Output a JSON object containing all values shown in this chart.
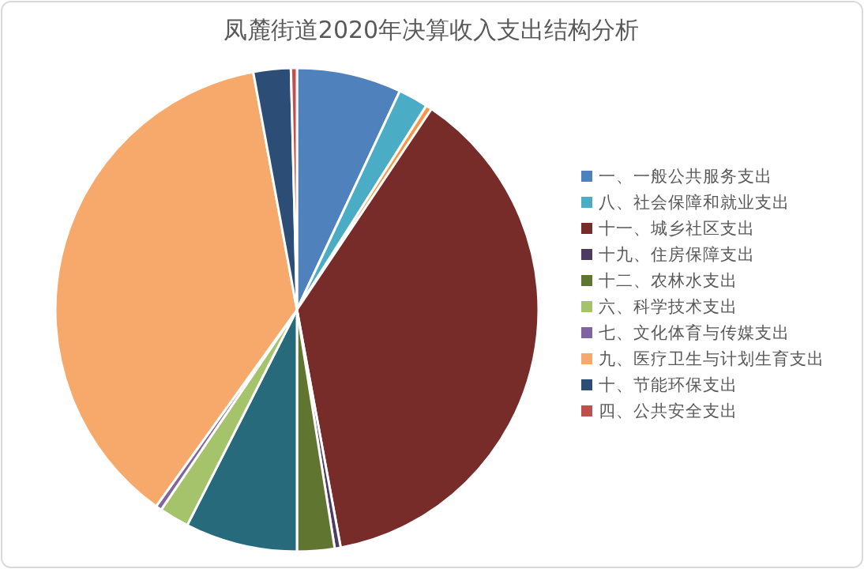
{
  "chart_data": {
    "type": "pie",
    "title": "凤麓街道2020年决算收入支出结构分析",
    "categories": [
      "一、一般公共服务支出",
      "八、社会保障和就业支出",
      null,
      "十一、城乡社区支出",
      "十九、住房保障支出",
      "十二、农林水支出",
      null,
      "六、科学技术支出",
      "七、文化体育与传媒支出",
      "九、医疗卫生与计划生育支出",
      "十、节能环保支出",
      "四、公共安全支出"
    ],
    "values": [
      7,
      2,
      0.4,
      37.7,
      0.4,
      2.5,
      7.5,
      2,
      0.4,
      37.2,
      2.5,
      0.4
    ],
    "colors": [
      "#4f81bd",
      "#4bacc6",
      "#f79646",
      "#772c2a",
      "#4d3b62",
      "#5f7530",
      "#276a7c",
      "#a5c36b",
      "#8064a2",
      "#f6a96a",
      "#2c4d75",
      "#c0504d"
    ],
    "legend": "right"
  }
}
